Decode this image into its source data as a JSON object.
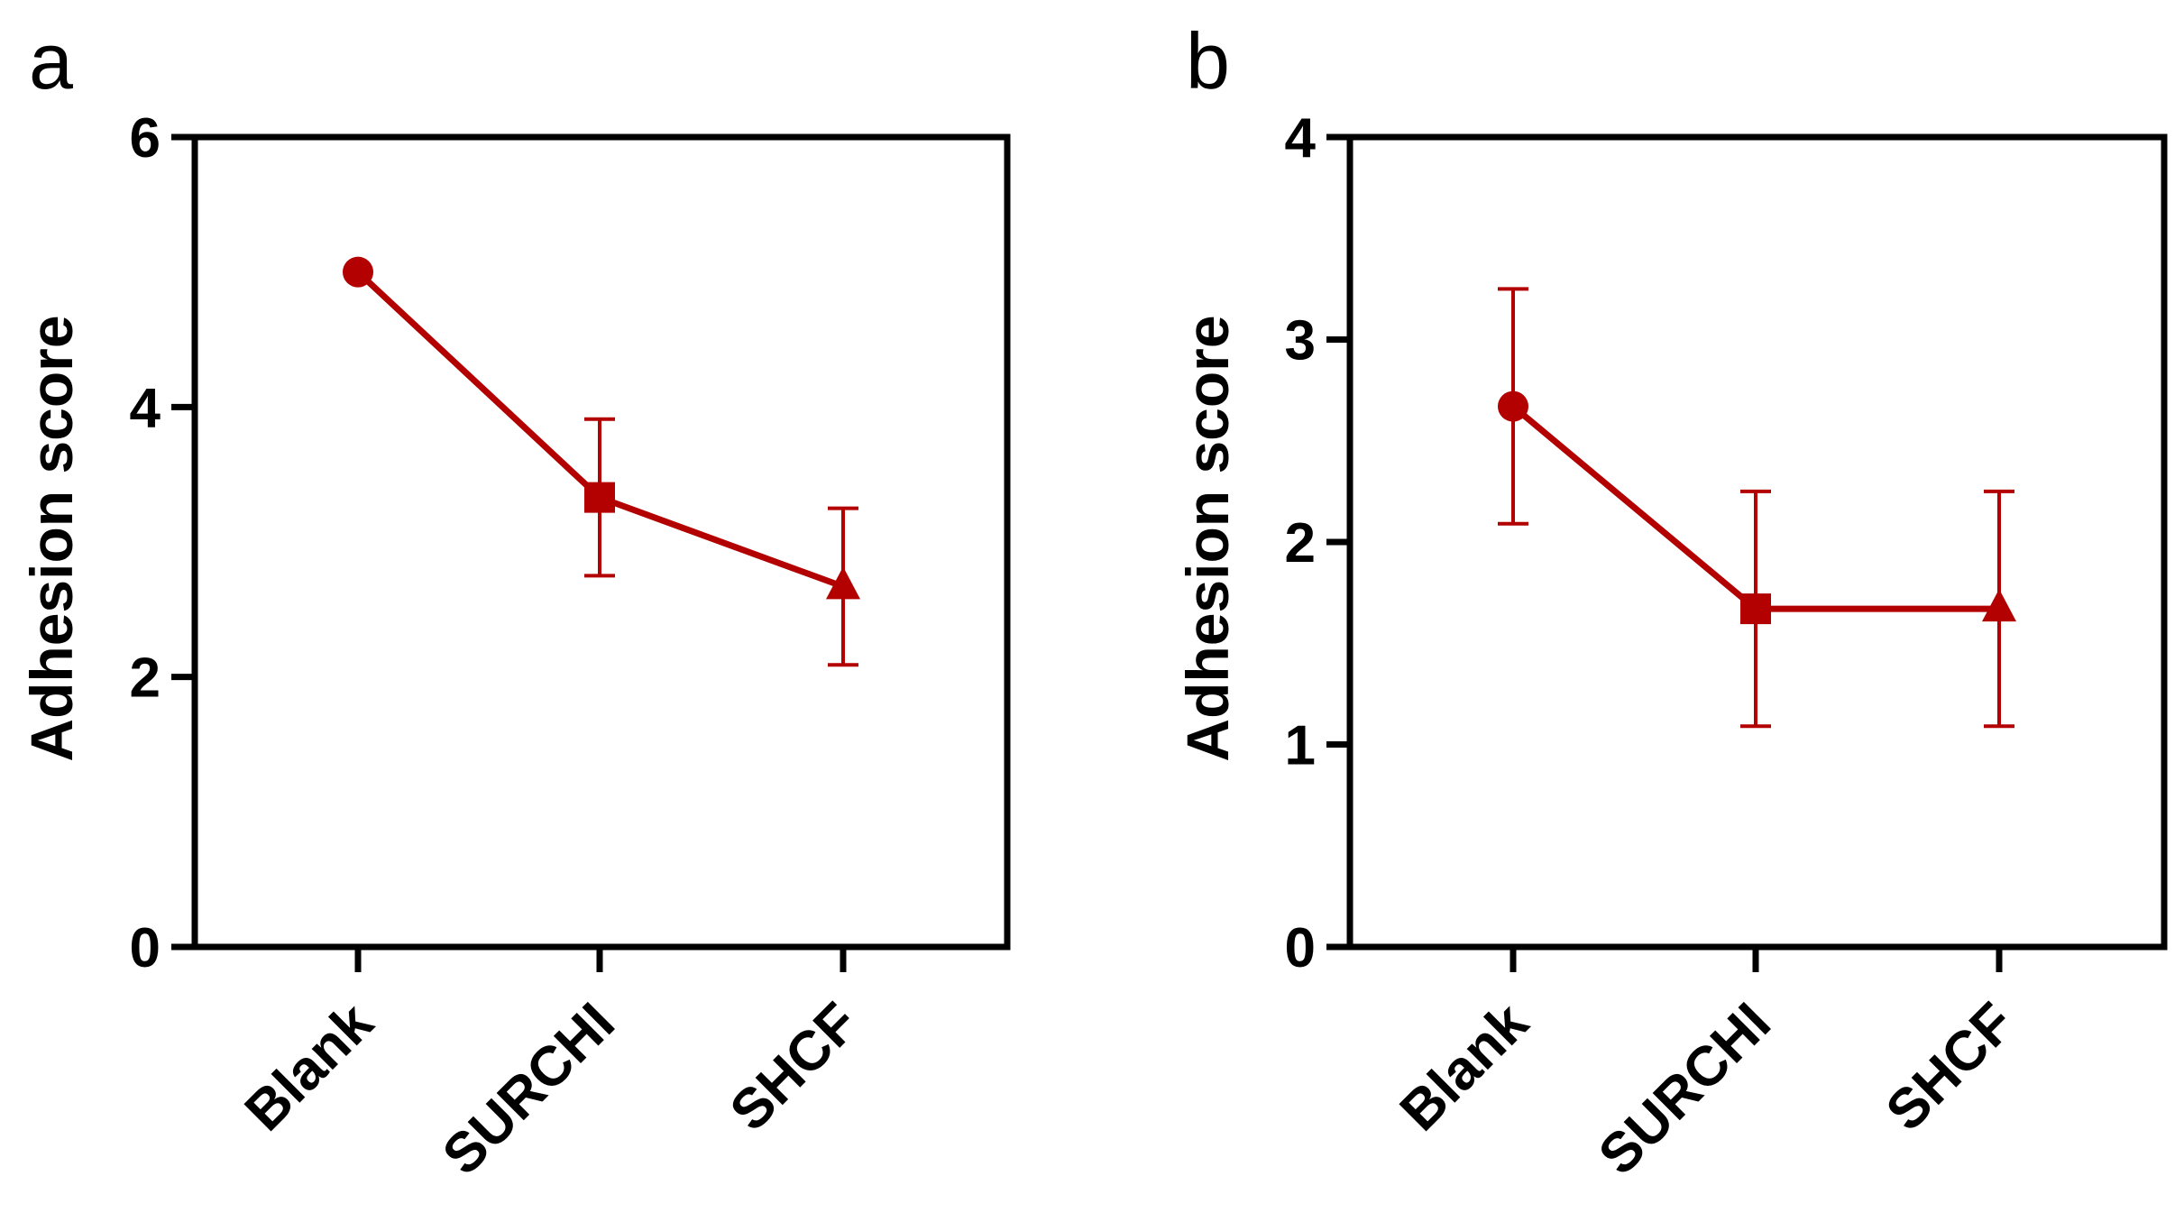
{
  "chart_data": [
    {
      "panel": "a",
      "type": "line",
      "title": "",
      "xlabel": "",
      "ylabel": "Adhesion score",
      "categories": [
        "Blank",
        "SURCHI",
        "SHCF"
      ],
      "ylim": [
        0,
        6
      ],
      "yticks": [
        "0",
        "2",
        "4",
        "6"
      ],
      "series": [
        {
          "name": "Adhesion score",
          "values": [
            5.0,
            3.33,
            2.67
          ],
          "error": [
            0.0,
            0.58,
            0.58
          ],
          "markers": [
            "circle",
            "square",
            "triangle"
          ],
          "color": "#B30000"
        }
      ]
    },
    {
      "panel": "b",
      "type": "line",
      "title": "",
      "xlabel": "",
      "ylabel": "Adhesion score",
      "categories": [
        "Blank",
        "SURCHI",
        "SHCF"
      ],
      "ylim": [
        0,
        4
      ],
      "yticks": [
        "0",
        "1",
        "2",
        "3",
        "4"
      ],
      "series": [
        {
          "name": "Adhesion score",
          "values": [
            2.67,
            1.67,
            1.67
          ],
          "error": [
            0.58,
            0.58,
            0.58
          ],
          "markers": [
            "circle",
            "square",
            "triangle"
          ],
          "color": "#B30000"
        }
      ]
    }
  ]
}
